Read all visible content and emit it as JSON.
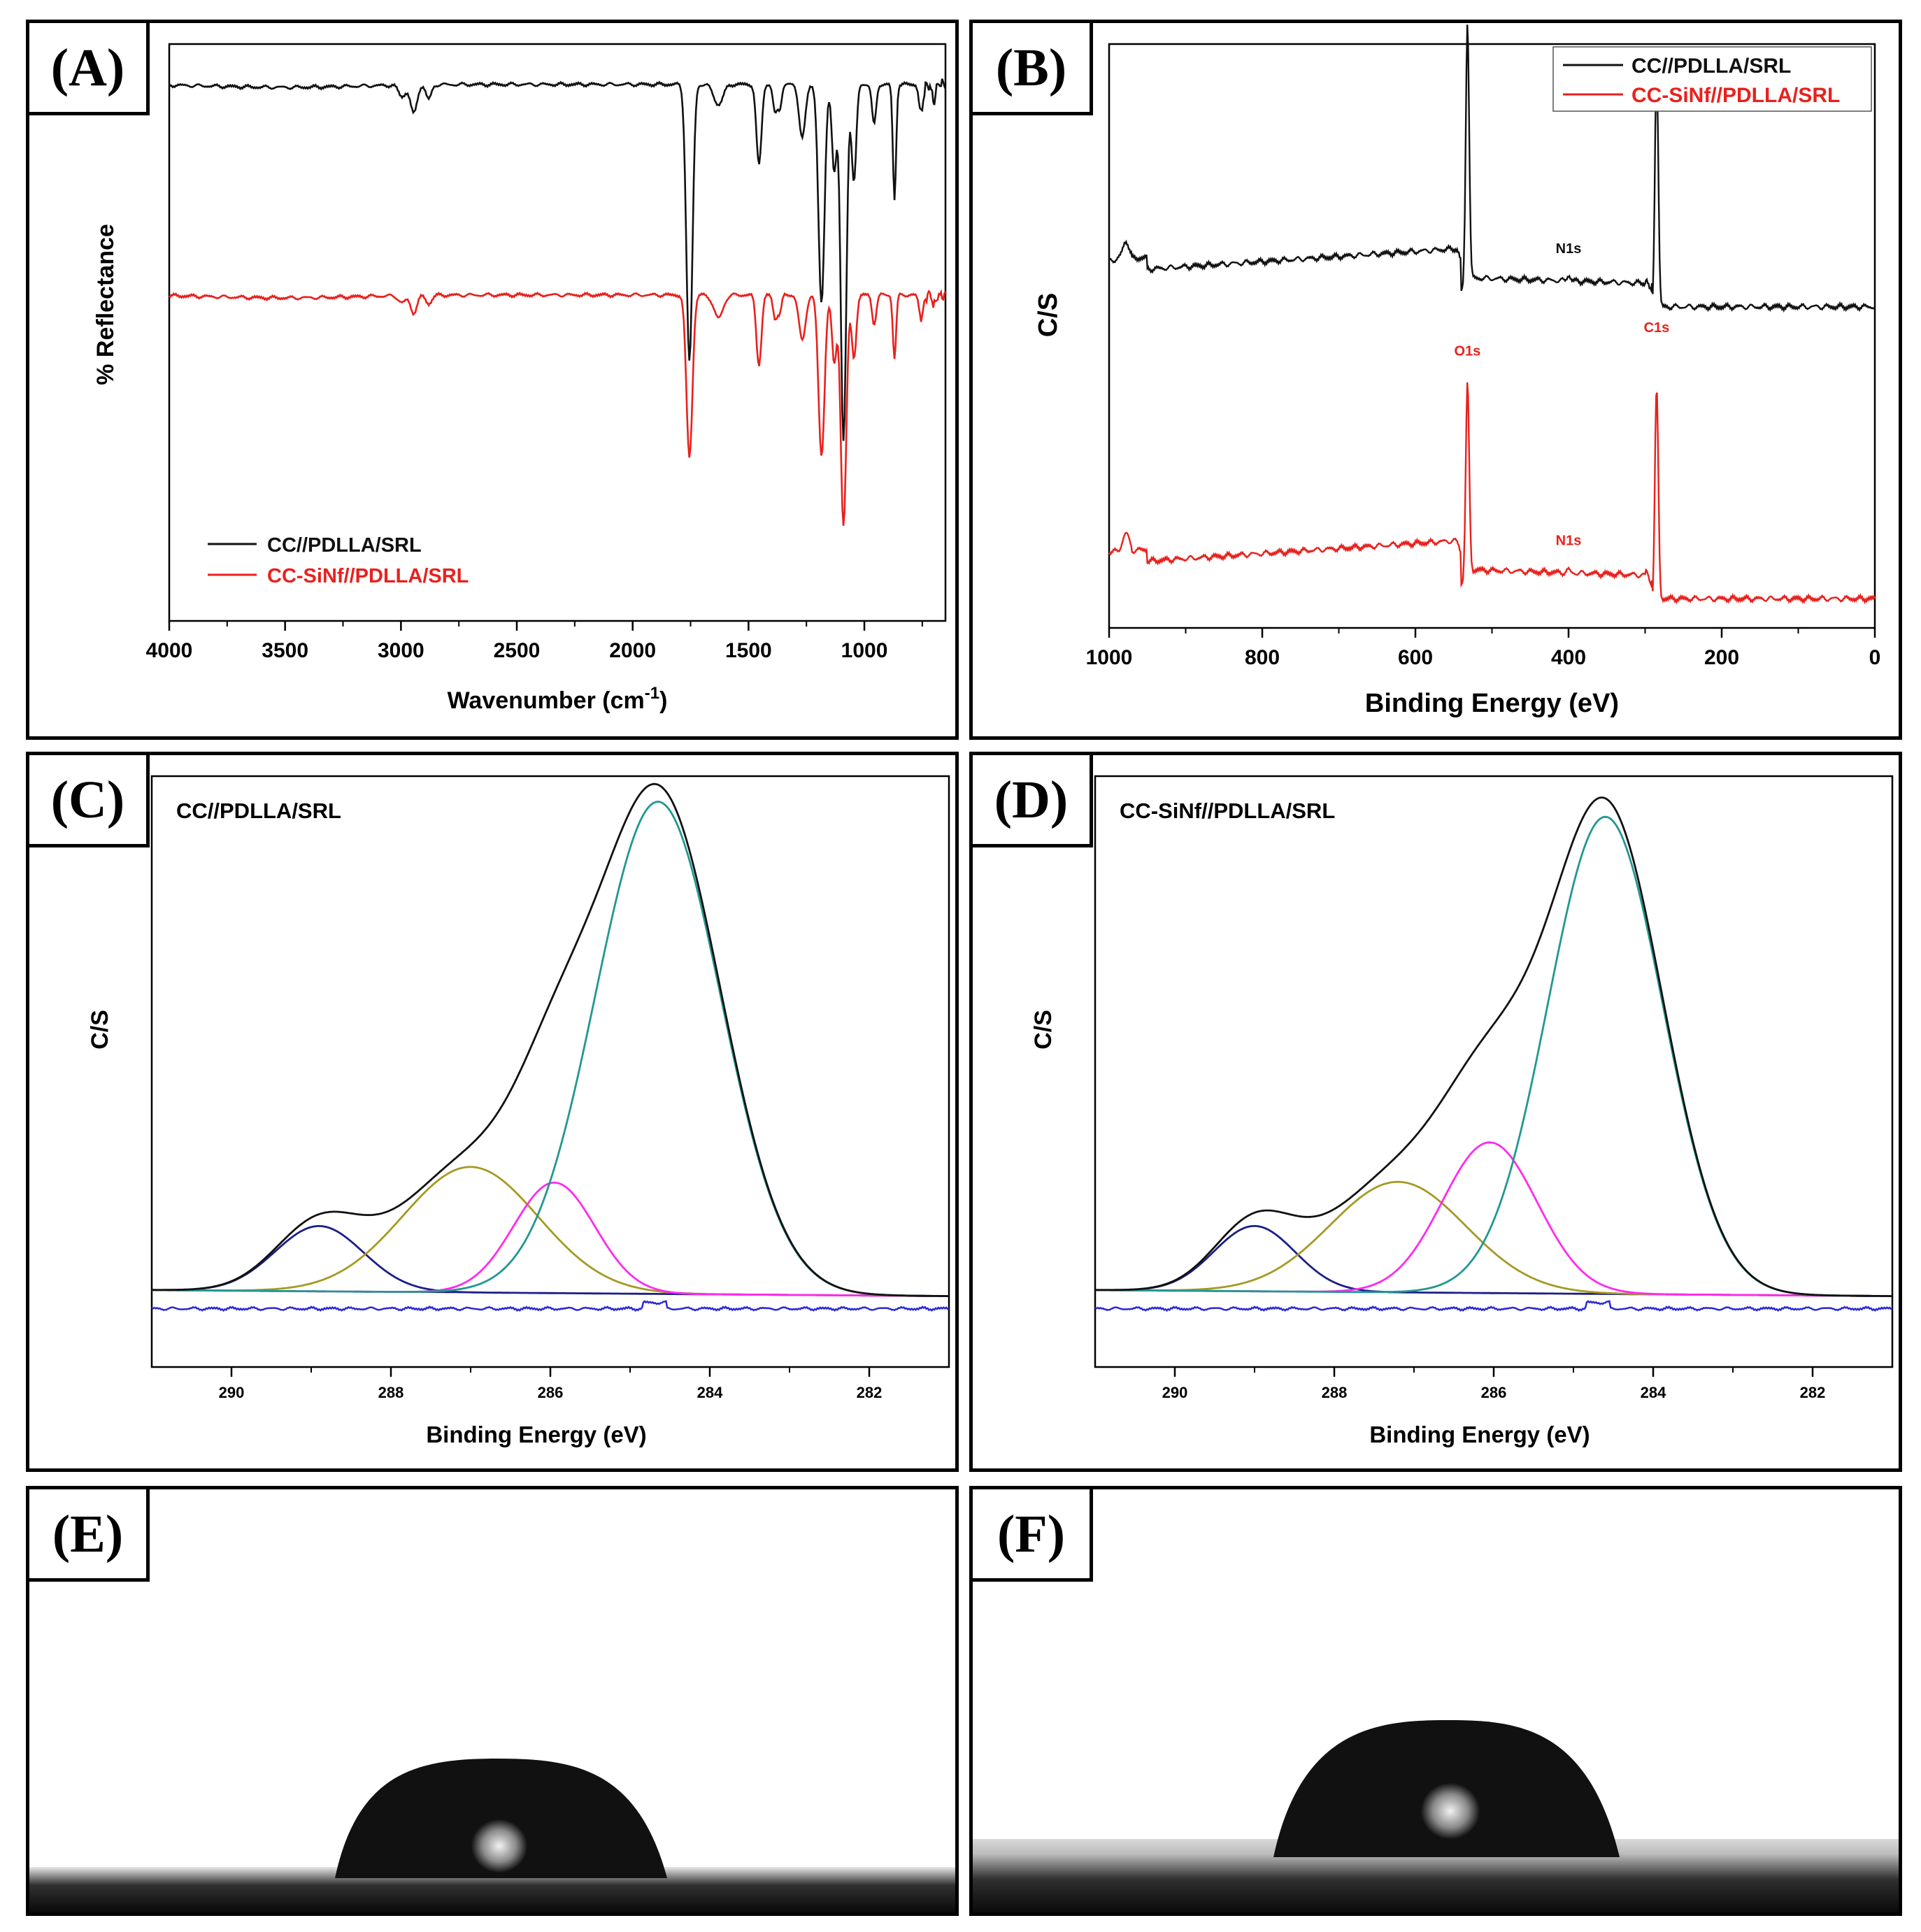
{
  "panels": {
    "A": {
      "tag": "(A)"
    },
    "B": {
      "tag": "(B)"
    },
    "C": {
      "tag": "(C)"
    },
    "D": {
      "tag": "(D)"
    },
    "E": {
      "tag": "(E)"
    },
    "F": {
      "tag": "(F)"
    }
  },
  "colors": {
    "black_series": "#111111",
    "red_series": "#e8211d",
    "fit_navy": "#1b1f86",
    "fit_olive": "#a49a22",
    "fit_magenta": "#ff2af0",
    "fit_teal": "#21988f",
    "residual_blue": "#2a2ad6"
  },
  "chart_data": [
    {
      "id": "A",
      "type": "line",
      "xlabel": "Wavenumber (cm-1)",
      "xlabel_main": "Wavenumber (cm",
      "xlabel_sup": "-1",
      "xlabel_tail": ")",
      "ylabel": "% Reflectance",
      "xlim": [
        4000,
        650
      ],
      "x_ticks": [
        "4000",
        "3500",
        "3000",
        "2500",
        "2000",
        "1500",
        "1000"
      ],
      "x_tick_values": [
        4000,
        3500,
        3000,
        2500,
        2000,
        1500,
        1000
      ],
      "ylim": [
        0,
        1
      ],
      "y_ticks": "none",
      "legend": {
        "position": "bottom-left",
        "entries": [
          "CC//PDLLA/SRL",
          "CC-SiNf//PDLLA/SRL"
        ]
      },
      "series": [
        {
          "name": "CC//PDLLA/SRL",
          "color": "black",
          "baseline": 0.93,
          "bands": [
            [
              3500,
              0.005,
              300
            ],
            [
              2995,
              0.02,
              15
            ],
            [
              2945,
              0.05,
              14
            ],
            [
              2880,
              0.025,
              12
            ],
            [
              1755,
              0.48,
              13
            ],
            [
              1630,
              0.035,
              20
            ],
            [
              1455,
              0.14,
              11
            ],
            [
              1385,
              0.05,
              9
            ],
            [
              1365,
              0.04,
              8
            ],
            [
              1268,
              0.09,
              14
            ],
            [
              1185,
              0.38,
              13
            ],
            [
              1130,
              0.15,
              10
            ],
            [
              1090,
              0.62,
              12
            ],
            [
              1045,
              0.17,
              10
            ],
            [
              958,
              0.07,
              9
            ],
            [
              870,
              0.2,
              7
            ],
            [
              755,
              0.05,
              9
            ],
            [
              700,
              0.03,
              7
            ]
          ]
        },
        {
          "name": "CC-SiNf//PDLLA/SRL",
          "color": "red",
          "baseline": 0.565,
          "bands": [
            [
              3500,
              0.005,
              300
            ],
            [
              2995,
              0.012,
              15
            ],
            [
              2945,
              0.03,
              14
            ],
            [
              2880,
              0.015,
              12
            ],
            [
              1755,
              0.28,
              13
            ],
            [
              1630,
              0.04,
              20
            ],
            [
              1455,
              0.12,
              11
            ],
            [
              1385,
              0.04,
              9
            ],
            [
              1365,
              0.03,
              8
            ],
            [
              1268,
              0.08,
              14
            ],
            [
              1185,
              0.28,
              13
            ],
            [
              1130,
              0.12,
              10
            ],
            [
              1090,
              0.4,
              12
            ],
            [
              1045,
              0.11,
              10
            ],
            [
              958,
              0.05,
              9
            ],
            [
              870,
              0.11,
              7
            ],
            [
              755,
              0.04,
              9
            ],
            [
              700,
              0.02,
              7
            ]
          ]
        }
      ]
    },
    {
      "id": "B",
      "type": "line",
      "xlabel": "Binding Energy (eV)",
      "ylabel": "C/S",
      "xlim": [
        1000,
        0
      ],
      "x_ticks": [
        "1000",
        "800",
        "600",
        "400",
        "200",
        "0"
      ],
      "x_tick_values": [
        1000,
        800,
        600,
        400,
        200,
        0
      ],
      "ylim": [
        0,
        1
      ],
      "y_ticks": "none",
      "legend": {
        "position": "top-right",
        "entries": [
          "CC//PDLLA/SRL",
          "CC-SiNf//PDLLA/SRL"
        ]
      },
      "series": [
        {
          "name": "CC//PDLLA/SRL",
          "color": "black",
          "offset": 0.5,
          "peak_labels": [
            {
              "text": "O1s",
              "x": 532
            },
            {
              "text": "N1s",
              "x": 400
            },
            {
              "text": "C1s",
              "x": 285
            }
          ]
        },
        {
          "name": "CC-SiNf//PDLLA/SRL",
          "color": "red",
          "offset": 0.0,
          "peak_labels": [
            {
              "text": "O1s",
              "x": 532
            },
            {
              "text": "N1s",
              "x": 400
            },
            {
              "text": "C1s",
              "x": 285
            }
          ]
        }
      ],
      "peaks": [
        {
          "label": "O1s",
          "x": 532,
          "height_black": 0.44,
          "height_red": 0.32
        },
        {
          "label": "N1s",
          "x": 400,
          "height_black": 0.01,
          "height_red": 0.005
        },
        {
          "label": "C1s",
          "x": 285,
          "height_black": 0.41,
          "height_red": 0.36
        }
      ]
    },
    {
      "id": "C",
      "type": "line",
      "title": "CC//PDLLA/SRL",
      "xlabel": "Binding Energy (eV)",
      "ylabel": "C/S",
      "xlim": [
        291,
        281
      ],
      "x_ticks": [
        "290",
        "288",
        "286",
        "284",
        "282"
      ],
      "x_tick_values": [
        290,
        288,
        286,
        284,
        282
      ],
      "ylim": [
        0,
        1
      ],
      "y_ticks": "none",
      "components": [
        {
          "center": 288.9,
          "height": 0.13,
          "fwhm": 1.3,
          "color": "navy"
        },
        {
          "center": 287.0,
          "height": 0.25,
          "fwhm": 2.0,
          "color": "olive"
        },
        {
          "center": 285.95,
          "height": 0.22,
          "fwhm": 1.2,
          "color": "magenta"
        },
        {
          "center": 284.65,
          "height": 0.98,
          "fwhm": 1.85,
          "color": "teal"
        }
      ],
      "envelope_peak": {
        "x": 284.65,
        "y": 1.0
      }
    },
    {
      "id": "D",
      "type": "line",
      "title": "CC-SiNf//PDLLA/SRL",
      "xlabel": "Binding Energy (eV)",
      "ylabel": "C/S",
      "xlim": [
        291,
        281
      ],
      "x_ticks": [
        "290",
        "288",
        "286",
        "284",
        "282"
      ],
      "x_tick_values": [
        290,
        288,
        286,
        284,
        282
      ],
      "ylim": [
        0,
        1
      ],
      "y_ticks": "none",
      "components": [
        {
          "center": 289.0,
          "height": 0.13,
          "fwhm": 1.2,
          "color": "navy"
        },
        {
          "center": 287.2,
          "height": 0.22,
          "fwhm": 2.0,
          "color": "olive"
        },
        {
          "center": 286.05,
          "height": 0.3,
          "fwhm": 1.4,
          "color": "magenta"
        },
        {
          "center": 284.6,
          "height": 0.95,
          "fwhm": 1.7,
          "color": "teal"
        }
      ],
      "envelope_peak": {
        "x": 284.6,
        "y": 1.0
      }
    }
  ]
}
